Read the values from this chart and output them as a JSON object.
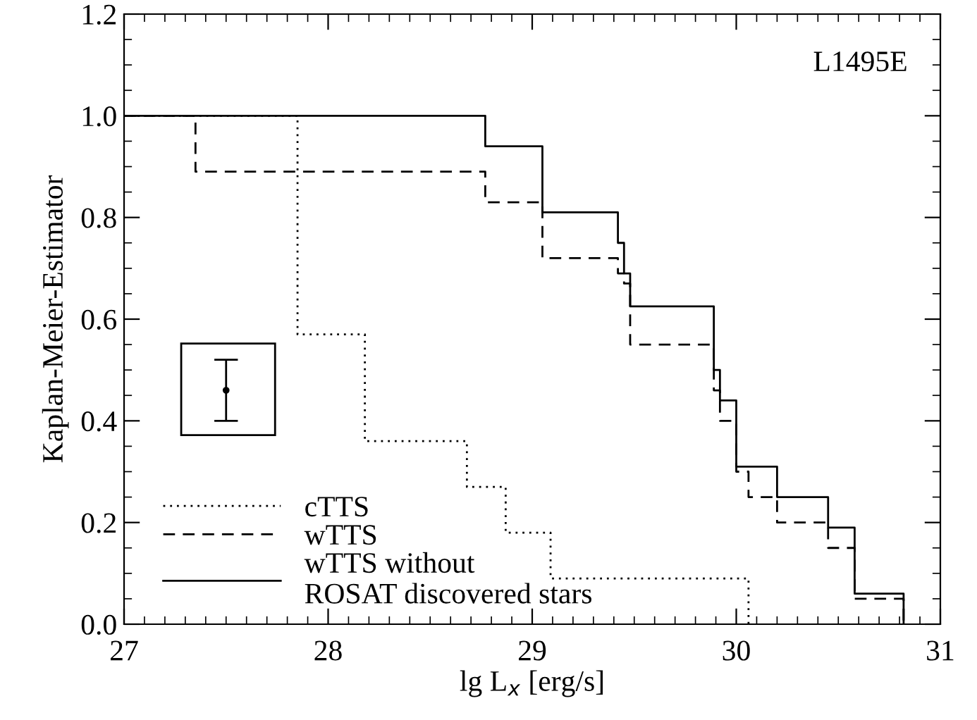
{
  "chart_data": {
    "type": "step",
    "xlabel": "lg L$_{x}$ [erg/s]",
    "ylabel": "Kaplan-Meier-Estimator",
    "annotations": [
      "L1495E"
    ],
    "xlim": [
      27,
      31
    ],
    "xticks": [
      27,
      28,
      29,
      30,
      31
    ],
    "ylim": [
      0,
      1.2
    ],
    "yticks": [
      {
        "value": 0,
        "label": "0.0"
      },
      0.2,
      0.4,
      0.6,
      0.8,
      {
        "value": 1,
        "label": "1.0"
      },
      1.2
    ],
    "grid": false,
    "legend": "bottom left",
    "series": [
      {
        "type": "scatter",
        "marker": "circle",
        "color": "#000000",
        "x": [
          27.5
        ],
        "values": [
          0.46
        ],
        "errors": [
          0.06
        ]
      },
      {
        "name": "cTTS",
        "color": "#000000",
        "line_style": "dotted",
        "x": [
          27,
          27.85,
          28.18,
          28.68,
          28.87,
          29.09,
          30.06
        ],
        "values": [
          1,
          0.57,
          0.36,
          0.27,
          0.18,
          0.09,
          0
        ]
      },
      {
        "name": "wTTS",
        "color": "#000000",
        "line_style": "dashed",
        "x": [
          27,
          27.35,
          28.77,
          29.05,
          29.42,
          29.45,
          29.48,
          29.89,
          29.92,
          30.0,
          30.06,
          30.2,
          30.45,
          30.58,
          30.82
        ],
        "values": [
          1,
          0.89,
          0.83,
          0.72,
          0.69,
          0.67,
          0.55,
          0.46,
          0.4,
          0.3,
          0.25,
          0.2,
          0.15,
          0.05,
          0
        ]
      },
      {
        "name": "wTTS without\nROSAT discovered stars",
        "color": "#000000",
        "line_style": "solid",
        "x": [
          27,
          28.77,
          29.05,
          29.42,
          29.45,
          29.48,
          29.89,
          29.92,
          30.0,
          30.2,
          30.45,
          30.58,
          30.82
        ],
        "values": [
          1,
          0.94,
          0.81,
          0.75,
          0.69,
          0.625,
          0.5,
          0.44,
          0.31,
          0.25,
          0.19,
          0.06,
          0
        ]
      }
    ]
  }
}
